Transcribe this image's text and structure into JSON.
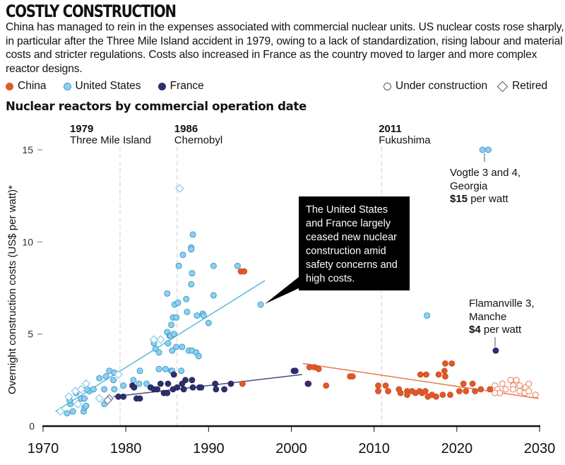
{
  "header": {
    "title": "COSTLY CONSTRUCTION",
    "description": "China has managed to rein in the expenses associated with commercial nuclear units. US nuclear costs rose sharply, in particular after the Three Mile Island accident in 1979, owing to a lack of standardization, rising labour and material costs and stricter regulations. Costs also increased in France as the country moved to larger and more complex reactor designs.",
    "subtitle": "Nuclear reactors by commercial operation date"
  },
  "legend": {
    "china": "China",
    "us": "United States",
    "france": "France",
    "under_construction": "Under construction",
    "retired": "Retired"
  },
  "colors": {
    "china": "#e0592a",
    "us_fill": "#8fd0ef",
    "us_stroke": "#3f9cc9",
    "france": "#2e2f6e",
    "us_trend": "#5bbbd8",
    "france_trend": "#4a4b80",
    "china_trend": "#e8794f"
  },
  "chart_data": {
    "type": "scatter",
    "title": "Nuclear reactors by commercial operation date",
    "xlabel": "",
    "ylabel": "Overnight construction costs (US$ per watt)*",
    "xlim": [
      1970,
      2030
    ],
    "ylim": [
      0,
      15
    ],
    "xticks": [
      "1970",
      "1980",
      "1990",
      "2000",
      "2010",
      "2020",
      "2030"
    ],
    "xtick_values": [
      1970,
      1980,
      1990,
      2000,
      2010,
      2020,
      2030
    ],
    "yticks": [
      "0",
      "5",
      "10",
      "15"
    ],
    "ytick_values": [
      0,
      5,
      10,
      15
    ],
    "grid": false,
    "events": [
      {
        "year_label": "1979",
        "name": "Three Mile Island",
        "x": 1979.3
      },
      {
        "year_label": "1986",
        "name": "Chernobyl",
        "x": 1986.2
      },
      {
        "year_label": "2011",
        "name": "Fukushima",
        "x": 2010.9
      }
    ],
    "series": [
      {
        "name": "China",
        "style": "filled",
        "points": [
          [
            1993.9,
            8.4
          ],
          [
            1994.3,
            8.4
          ],
          [
            1994.1,
            2.3
          ],
          [
            2002.2,
            3.2
          ],
          [
            2002.8,
            3.2
          ],
          [
            2003.3,
            3.1
          ],
          [
            2002.1,
            2.3
          ],
          [
            2004.2,
            2.2
          ],
          [
            2007.1,
            2.7
          ],
          [
            2007.4,
            2.7
          ],
          [
            2010.5,
            2.2
          ],
          [
            2011.4,
            2.2
          ],
          [
            2010.5,
            1.9
          ],
          [
            2011.7,
            1.9
          ],
          [
            2013.0,
            2.0
          ],
          [
            2013.2,
            1.8
          ],
          [
            2014.0,
            1.9
          ],
          [
            2014.0,
            1.7
          ],
          [
            2014.6,
            1.9
          ],
          [
            2015.0,
            1.8
          ],
          [
            2015.5,
            1.9
          ],
          [
            2015.8,
            1.8
          ],
          [
            2016.2,
            1.9
          ],
          [
            2016.5,
            1.6
          ],
          [
            2017.0,
            1.7
          ],
          [
            2017.5,
            1.6
          ],
          [
            2018.3,
            1.7
          ],
          [
            2019.2,
            1.7
          ],
          [
            2015.6,
            2.8
          ],
          [
            2016.3,
            2.8
          ],
          [
            2017.8,
            2.8
          ],
          [
            2018.5,
            3.0
          ],
          [
            2018.6,
            2.7
          ],
          [
            2018.6,
            3.4
          ],
          [
            2019.4,
            3.4
          ],
          [
            2020.3,
            1.9
          ],
          [
            2021.1,
            1.9
          ],
          [
            2020.8,
            2.3
          ],
          [
            2021.9,
            2.3
          ],
          [
            2022.2,
            1.9
          ],
          [
            2022.9,
            2.0
          ],
          [
            2024.0,
            2.0
          ]
        ]
      },
      {
        "name": "China (under construction)",
        "style": "open",
        "points": [
          [
            2024.6,
            2.2
          ],
          [
            2024.9,
            2.0
          ],
          [
            2025.5,
            2.3
          ],
          [
            2025.2,
            1.8
          ],
          [
            2025.9,
            2.0
          ],
          [
            2026.5,
            2.5
          ],
          [
            2027.2,
            2.5
          ],
          [
            2026.8,
            2.2
          ],
          [
            2026.8,
            2.0
          ],
          [
            2027.6,
            2.2
          ],
          [
            2027.6,
            1.9
          ],
          [
            2028.2,
            1.8
          ],
          [
            2028.3,
            2.1
          ],
          [
            2028.7,
            2.3
          ],
          [
            2028.7,
            1.9
          ],
          [
            2029.5,
            1.7
          ],
          [
            2024.6,
            1.8
          ]
        ]
      },
      {
        "name": "United States",
        "style": "filled",
        "points": [
          [
            1972.9,
            0.7
          ],
          [
            1973.6,
            0.8
          ],
          [
            1974.9,
            0.8
          ],
          [
            1975.0,
            1.0
          ],
          [
            1975.2,
            1.1
          ],
          [
            1973.3,
            1.2
          ],
          [
            1977.4,
            1.2
          ],
          [
            1973.2,
            1.4
          ],
          [
            1974.0,
            1.8
          ],
          [
            1974.6,
            1.5
          ],
          [
            1975.0,
            1.5
          ],
          [
            1975.6,
            1.9
          ],
          [
            1976.1,
            2.0
          ],
          [
            1975.3,
            2.0
          ],
          [
            1977.4,
            2.0
          ],
          [
            1978.6,
            2.0
          ],
          [
            1977.6,
            2.7
          ],
          [
            1976.8,
            2.6
          ],
          [
            1978.0,
            3.0
          ],
          [
            1978.6,
            2.9
          ],
          [
            1978.5,
            2.5
          ],
          [
            1979.7,
            2.2
          ],
          [
            1980.9,
            2.5
          ],
          [
            1981.6,
            2.3
          ],
          [
            1982.5,
            2.3
          ],
          [
            1981.7,
            3.0
          ],
          [
            1984.0,
            3.1
          ],
          [
            1984.8,
            3.1
          ],
          [
            1985.5,
            3.0
          ],
          [
            1983.4,
            4.5
          ],
          [
            1983.6,
            4.2
          ],
          [
            1984.0,
            4.0
          ],
          [
            1985.0,
            5.1
          ],
          [
            1985.3,
            4.9
          ],
          [
            1985.5,
            5.5
          ],
          [
            1985.7,
            5.9
          ],
          [
            1985.6,
            4.1
          ],
          [
            1985.0,
            7.2
          ],
          [
            1985.9,
            6.6
          ],
          [
            1988.1,
            10.4
          ],
          [
            1987.9,
            9.7
          ],
          [
            1987.9,
            9.6
          ],
          [
            1986.9,
            9.3
          ],
          [
            1986.4,
            8.7
          ],
          [
            1990.6,
            8.7
          ],
          [
            1993.5,
            8.7
          ],
          [
            1988.0,
            8.3
          ],
          [
            1987.9,
            7.7
          ],
          [
            1987.3,
            6.9
          ],
          [
            1990.6,
            7.1
          ],
          [
            1986.3,
            6.7
          ],
          [
            1996.3,
            6.6
          ],
          [
            1987.4,
            6.2
          ],
          [
            1988.6,
            6.0
          ],
          [
            1989.3,
            6.1
          ],
          [
            1989.4,
            6.0
          ],
          [
            1990.0,
            5.6
          ],
          [
            1986.1,
            5.9
          ],
          [
            1985.4,
            4.9
          ],
          [
            1985.8,
            5.0
          ],
          [
            1985.1,
            4.5
          ],
          [
            1986.1,
            4.3
          ],
          [
            1986.8,
            4.3
          ],
          [
            1987.6,
            4.1
          ],
          [
            1988.0,
            4.1
          ],
          [
            1988.5,
            4.0
          ],
          [
            1988.8,
            3.8
          ],
          [
            1985.6,
            3.0
          ],
          [
            1986.7,
            3.0
          ],
          [
            2016.4,
            6.0
          ],
          [
            2023.1,
            15.0
          ],
          [
            2023.8,
            15.0
          ]
        ]
      },
      {
        "name": "United States (retired)",
        "style": "diamond",
        "points": [
          [
            1972.1,
            0.8
          ],
          [
            1973.1,
            1.6
          ],
          [
            1973.9,
            1.9
          ],
          [
            1974.2,
            1.2
          ],
          [
            1975.2,
            2.3
          ],
          [
            1974.6,
            2.0
          ],
          [
            1976.8,
            1.5
          ],
          [
            1979.1,
            2.8
          ],
          [
            1983.4,
            4.7
          ],
          [
            1984.2,
            4.7
          ],
          [
            1986.5,
            12.9
          ]
        ]
      },
      {
        "name": "France",
        "style": "filled",
        "points": [
          [
            1979.1,
            1.6
          ],
          [
            1979.7,
            1.6
          ],
          [
            1981.3,
            1.5
          ],
          [
            1981.7,
            1.5
          ],
          [
            1980.8,
            2.2
          ],
          [
            1981.0,
            2.1
          ],
          [
            1983.0,
            2.1
          ],
          [
            1983.4,
            2.0
          ],
          [
            1983.8,
            2.0
          ],
          [
            1984.2,
            2.3
          ],
          [
            1985.1,
            2.3
          ],
          [
            1984.6,
            1.8
          ],
          [
            1985.0,
            1.8
          ],
          [
            1985.8,
            2.8
          ],
          [
            1985.7,
            2.0
          ],
          [
            1986.2,
            2.1
          ],
          [
            1986.8,
            2.3
          ],
          [
            1987.2,
            2.5
          ],
          [
            1987.0,
            2.0
          ],
          [
            1988.0,
            2.5
          ],
          [
            1988.1,
            2.1
          ],
          [
            1988.9,
            2.1
          ],
          [
            1989.1,
            2.1
          ],
          [
            1990.8,
            2.3
          ],
          [
            1990.9,
            2.0
          ],
          [
            1991.9,
            2.0
          ],
          [
            1992.7,
            2.3
          ],
          [
            2000.3,
            3.0
          ],
          [
            2000.5,
            3.0
          ],
          [
            2002.0,
            2.3
          ],
          [
            2024.7,
            4.1
          ]
        ]
      },
      {
        "name": "France (retired)",
        "style": "diamond",
        "points": [
          [
            1978.0,
            1.5
          ],
          [
            1977.8,
            1.4
          ]
        ]
      }
    ],
    "trend_lines": [
      {
        "name": "United States",
        "from": [
          1971.5,
          0.8
        ],
        "to": [
          1996.8,
          7.9
        ]
      },
      {
        "name": "France",
        "from": [
          1978.5,
          1.6
        ],
        "to": [
          2001.3,
          2.8
        ]
      },
      {
        "name": "China",
        "from": [
          2001.4,
          3.4
        ],
        "to": [
          2029.9,
          1.5
        ]
      }
    ],
    "annotations": {
      "callout": [
        "The United States",
        "and France largely",
        "ceased new nuclear",
        "construction amid",
        "safety concerns and",
        "high costs."
      ],
      "vogtle": {
        "line1": "Vogtle 3 and 4,",
        "line2": "Georgia",
        "price": "$15",
        "unit": " per watt"
      },
      "flamanville": {
        "line1": "Flamanville 3,",
        "line2": "Manche",
        "price": "$4",
        "unit": " per watt"
      }
    }
  }
}
